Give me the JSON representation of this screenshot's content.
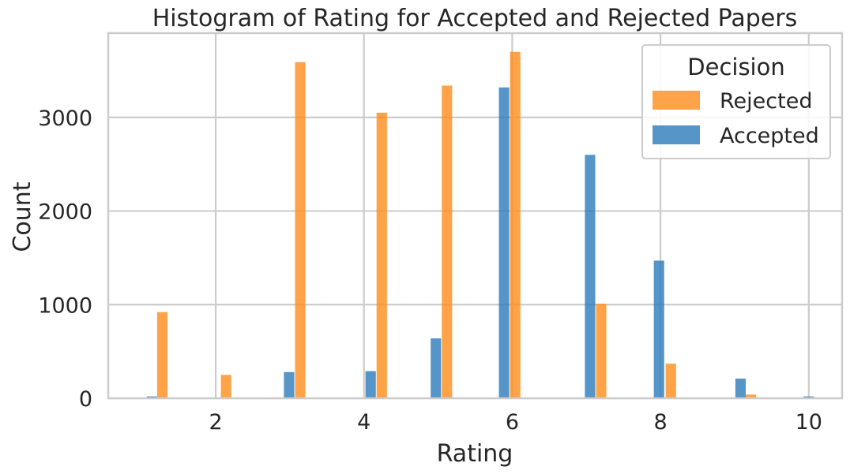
{
  "chart_data": {
    "type": "bar",
    "title": "Histogram of Rating for Accepted and Rejected Papers",
    "xlabel": "Rating",
    "ylabel": "Count",
    "xlim": [
      0.55,
      10.45
    ],
    "ylim": [
      0,
      3900
    ],
    "xticks": [
      2,
      4,
      6,
      8,
      10
    ],
    "yticks": [
      0,
      1000,
      2000,
      3000
    ],
    "grid": true,
    "legend": {
      "title": "Decision",
      "placement": "top-right"
    },
    "colors": {
      "Rejected": "#ff8c1a",
      "Accepted": "#2b7bba"
    },
    "bin_width": 0.14,
    "series": [
      {
        "name": "Rejected",
        "x": [
          1.28,
          2.14,
          3.14,
          4.24,
          5.12,
          6.04,
          7.2,
          8.14,
          9.22
        ],
        "values": [
          920,
          250,
          3590,
          3050,
          3340,
          3700,
          1010,
          370,
          40
        ]
      },
      {
        "name": "Accepted",
        "x": [
          1.14,
          2.0,
          2.99,
          4.09,
          4.97,
          5.89,
          7.05,
          7.98,
          9.08,
          10.0
        ],
        "values": [
          20,
          5,
          280,
          290,
          640,
          3320,
          2600,
          1470,
          210,
          20
        ]
      }
    ]
  }
}
